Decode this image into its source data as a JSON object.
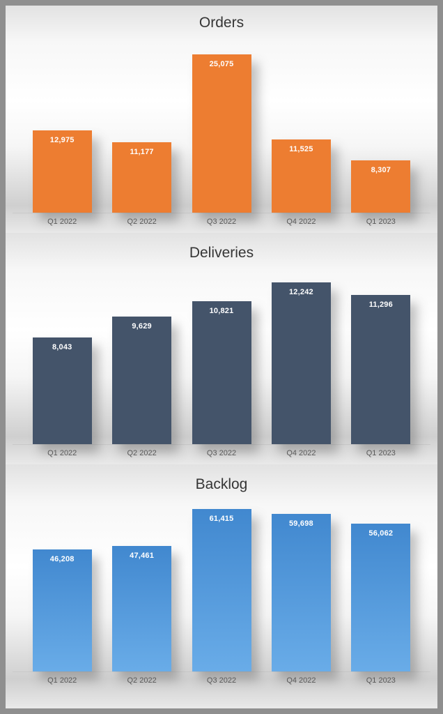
{
  "page": {
    "frame_border_color": "#8f8f8f",
    "value_label_color": "#ffffff",
    "category_label_color": "#595959"
  },
  "chart_data": [
    {
      "type": "bar",
      "title": "Orders",
      "categories": [
        "Q1 2022",
        "Q2 2022",
        "Q3 2022",
        "Q4 2022",
        "Q1 2023"
      ],
      "values": [
        12975,
        11177,
        25075,
        11525,
        8307
      ],
      "value_labels": [
        "12,975",
        "11,177",
        "25,075",
        "11,525",
        "8,307"
      ],
      "bar_color": "#ED7D31",
      "xlabel": "",
      "ylabel": "",
      "ylim": [
        0,
        28000
      ],
      "grid": false,
      "legend": "none",
      "data_labels": "inside-top, white bold"
    },
    {
      "type": "bar",
      "title": "Deliveries",
      "categories": [
        "Q1 2022",
        "Q2 2022",
        "Q3 2022",
        "Q4 2022",
        "Q1 2023"
      ],
      "values": [
        8043,
        9629,
        10821,
        12242,
        11296
      ],
      "value_labels": [
        "8,043",
        "9,629",
        "10,821",
        "12,242",
        "11,296"
      ],
      "bar_color": "#44546A",
      "xlabel": "",
      "ylabel": "",
      "ylim": [
        0,
        13500
      ],
      "grid": false,
      "legend": "none",
      "data_labels": "inside-top, white bold"
    },
    {
      "type": "bar",
      "title": "Backlog",
      "categories": [
        "Q1 2022",
        "Q2 2022",
        "Q3 2022",
        "Q4 2022",
        "Q1 2023"
      ],
      "values": [
        46208,
        47461,
        61415,
        59698,
        56062
      ],
      "value_labels": [
        "46,208",
        "47,461",
        "61,415",
        "59,698",
        "56,062"
      ],
      "bar_color": "#4A8FD3",
      "bar_gradient": [
        "#4188CF",
        "#69ACE8"
      ],
      "xlabel": "",
      "ylabel": "",
      "ylim": [
        0,
        66000
      ],
      "grid": false,
      "legend": "none",
      "data_labels": "inside-top, white bold"
    }
  ]
}
